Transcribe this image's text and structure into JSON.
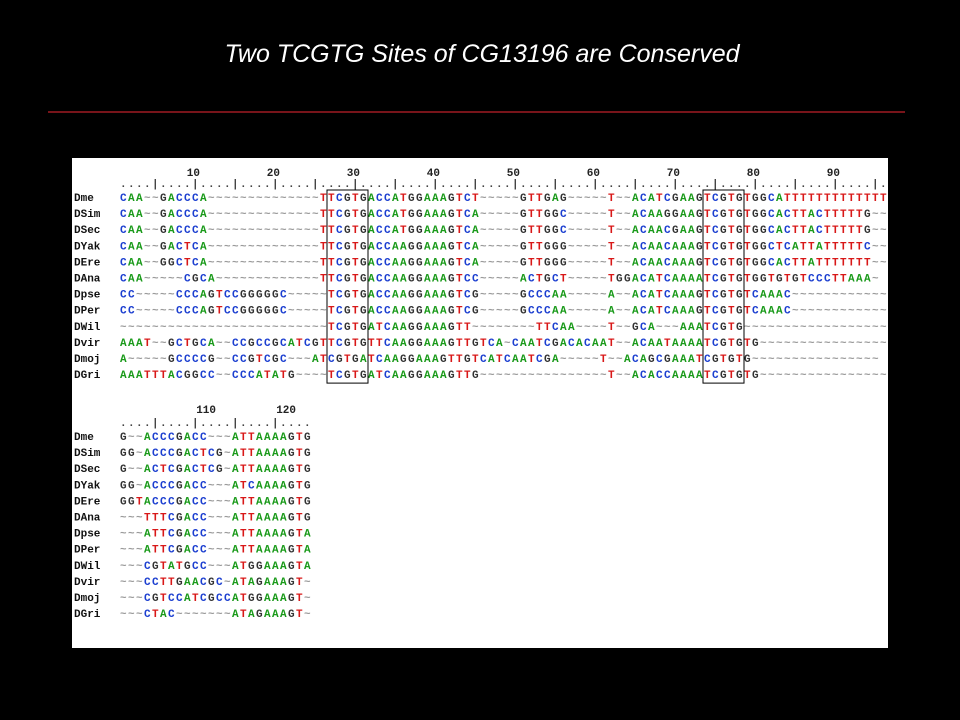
{
  "title": "Two TCGTG  Sites of CG13196 are Conserved",
  "alignment": {
    "blocks": [
      {
        "ruler_numbers": [
          "10",
          "20",
          "30",
          "40",
          "50",
          "60",
          "70",
          "80",
          "90"
        ],
        "ruler": "....|....|....|....|....|....|....|....|....|....|....|....|....|....|....|....|....|....|....|.",
        "rows": [
          {
            "name": "Dme",
            "sequence": "CAA~~GACCCA~~~~~~~~~~~~~~TTCGTGACCATGGAAAGTCT~~~~~GTTGAG~~~~~T~~ACATCGAAGTCGTGTGGCATTTTTTTTTTTTT"
          },
          {
            "name": "DSim",
            "sequence": "CAA~~GACCCA~~~~~~~~~~~~~~TTCGTGACCATGGAAAGTCA~~~~~GTTGGC~~~~~T~~ACAAGGAAGTCGTGTGGCACTTACTTTTTG~~"
          },
          {
            "name": "DSec",
            "sequence": "CAA~~GACCCA~~~~~~~~~~~~~~TTCGTGACCATGGAAAGTCA~~~~~GTTGGC~~~~~T~~ACAACGAAGTCGTGTGGCACTTACTTTTTG~~"
          },
          {
            "name": "DYak",
            "sequence": "CAA~~GACTCA~~~~~~~~~~~~~~TTCGTGACCAAGGAAAGTCA~~~~~GTTGGG~~~~~T~~ACAACAAAGTCGTGTGGCTCATTATTTTTC~~"
          },
          {
            "name": "DEre",
            "sequence": "CAA~~GGCTCA~~~~~~~~~~~~~~TTCGTGACCAAGGAAAGTCA~~~~~GTTGGG~~~~~T~~ACAACAAAGTCGTGTGGCACTTATTTTTTT~~"
          },
          {
            "name": "DAna",
            "sequence": "CAA~~~~~CGCA~~~~~~~~~~~~~TTCGTGACCAAGGAAAGTCC~~~~~ACTGCT~~~~~TGGACATCAAAATCGTGTGGTGTGTCCCTTAAA~"
          },
          {
            "name": "Dpse",
            "sequence": "CC~~~~~CCCAGTCCGGGGGC~~~~~TCGTGACCAAGGAAAGTCG~~~~~GCCCAA~~~~~A~~ACATCAAAGTCGTGTCAAAC~~~~~~~~~~~~"
          },
          {
            "name": "DPer",
            "sequence": "CC~~~~~CCCAGTCCGGGGGC~~~~~TCGTGACCAAGGAAAGTCG~~~~~GCCCAA~~~~~A~~ACATCAAAGTCGTGTCAAAC~~~~~~~~~~~~"
          },
          {
            "name": "DWil",
            "sequence": "~~~~~~~~~~~~~~~~~~~~~~~~~~TCGTGATCAAGGAAAGTT~~~~~~~~TTCAA~~~~T~~GCA~~~AAATCGTG~~~~~~~~~~~~~~~~~~"
          },
          {
            "name": "Dvir",
            "sequence": "AAAT~~GCTGCA~~CCGCCGCATCGTTCGTGTTCAAGGAAAGTTGTCA~CAATCGACACAAT~~ACAATAAAATCGTGTG~~~~~~~~~~~~~~~~"
          },
          {
            "name": "Dmoj",
            "sequence": "A~~~~~GCCCCG~~CCGTCGC~~~ATCGTGATCAAGGAAAGTTGTCATCAATCGA~~~~~T~~ACAGCGAAATCGTGTG~~~~~~~~~~~~~~~~"
          },
          {
            "name": "DGri",
            "sequence": "AAATTTACGGCC~~CCCATATG~~~~TCGTGATCAAGGAAAGTTG~~~~~~~~~~~~~~~~T~~ACACCAAAATCGTGTG~~~~~~~~~~~~~~~~"
          }
        ]
      },
      {
        "ruler_numbers": [
          "110",
          "120"
        ],
        "ruler": "....|....|....|....|....",
        "rows": [
          {
            "name": "Dme",
            "sequence": "G~~ACCCGACC~~~ATTAAAAGTG"
          },
          {
            "name": "DSim",
            "sequence": "GG~ACCCGACTCG~ATTAAAAGTG"
          },
          {
            "name": "DSec",
            "sequence": "G~~ACTCGACTCG~ATTAAAAGTG"
          },
          {
            "name": "DYak",
            "sequence": "GG~ACCCGACC~~~ATCAAAAGTG"
          },
          {
            "name": "DEre",
            "sequence": "GGTACCCGACC~~~ATTAAAAGTG"
          },
          {
            "name": "DAna",
            "sequence": "~~~TTTCGACC~~~ATTAAAAGTG"
          },
          {
            "name": "Dpse",
            "sequence": "~~~ATTCGACC~~~ATTAAAAGTA"
          },
          {
            "name": "DPer",
            "sequence": "~~~ATTCGACC~~~ATTAAAAGTA"
          },
          {
            "name": "DWil",
            "sequence": "~~~CGTATGCC~~~ATGGAAAGTA"
          },
          {
            "name": "Dvir",
            "sequence": "~~~CCTTGAACGC~ATAGAAAGT~"
          },
          {
            "name": "Dmoj",
            "sequence": "~~~CGTCCATCGCCATGGAAAGT~"
          },
          {
            "name": "DGri",
            "sequence": "~~~CTAC~~~~~~~ATAGAAAGT~"
          }
        ]
      }
    ]
  }
}
